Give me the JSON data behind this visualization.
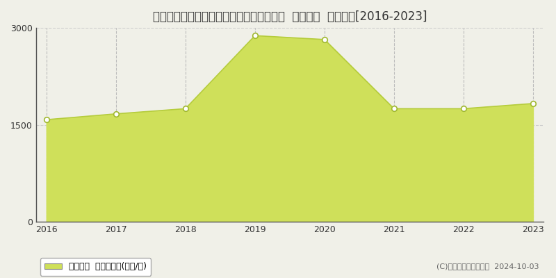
{
  "title": "東京都新宿区歌舞伎町一丁目１８番１１外  基準地価  地価推移[2016-2023]",
  "years": [
    2016,
    2017,
    2018,
    2019,
    2020,
    2021,
    2022,
    2023
  ],
  "values": [
    1580,
    1670,
    1750,
    2880,
    2820,
    1750,
    1750,
    1830
  ],
  "line_color": "#b5cc3c",
  "fill_color": "#cfe05a",
  "fill_alpha": 1.0,
  "marker_facecolor": "#ffffff",
  "marker_edgecolor": "#a0b830",
  "marker_size": 30,
  "background_color": "#f0f0e8",
  "plot_bg_color": "#f0f0e8",
  "grid_color_h": "#cccccc",
  "grid_color_v": "#bbbbbb",
  "ylim": [
    0,
    3000
  ],
  "yticks": [
    0,
    1500,
    3000
  ],
  "legend_label": "基準地価  平均坪単価(万円/坪)",
  "copyright_text": "(C)土地価格ドットコム  2024-10-03",
  "title_fontsize": 12,
  "tick_fontsize": 9,
  "legend_fontsize": 9,
  "copyright_fontsize": 8
}
